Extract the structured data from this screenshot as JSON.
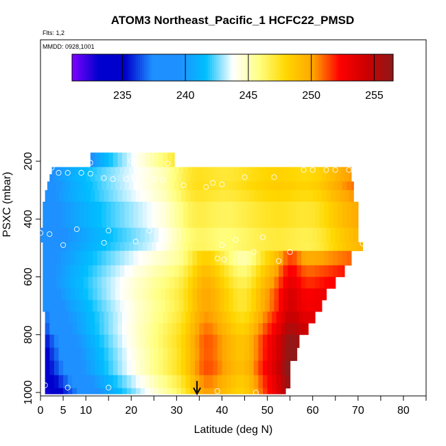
{
  "chart_data": {
    "type": "heatmap",
    "title": "ATOM3 Northeast_Pacific_1 HCFC22_PMSD",
    "annotations": {
      "flights": "Flts: 1,2",
      "dates": "MMDD: 0928,1001"
    },
    "xlabel": "Latitude (deg N)",
    "ylabel": "PSXC (mbar)",
    "xlim": [
      0,
      85
    ],
    "ylim": [
      1000,
      0
    ],
    "x_ticks": [
      0,
      5,
      10,
      20,
      30,
      40,
      50,
      60,
      70,
      80
    ],
    "y_ticks": [
      200,
      400,
      600,
      800,
      1000
    ],
    "colorbar": {
      "range": [
        231,
        256.5
      ],
      "ticks": [
        235,
        240,
        245,
        250,
        255
      ],
      "colors": [
        "#7f00ff",
        "#0000cd",
        "#0000cd",
        "#1e90ff",
        "#1e90ff",
        "#00bfff",
        "#ffffff",
        "#ffff80",
        "#ffd700",
        "#ffa500",
        "#ff0000",
        "#cc0000",
        "#8b1a1a"
      ]
    },
    "cell_rows": [
      {
        "p_top": 170,
        "p_bot": 220,
        "x_start": 11,
        "x_end": 29.5,
        "v_left": 239,
        "v_right": 246.5
      },
      {
        "p_top": 220,
        "p_bot": 245,
        "x_start": 2.5,
        "x_end": 68.5,
        "v_left": 239,
        "v_right": 250.5
      },
      {
        "p_top": 245,
        "p_bot": 270,
        "x_start": 2,
        "x_end": 68.5,
        "v_left": 239,
        "v_right": 250.5
      },
      {
        "p_top": 270,
        "p_bot": 300,
        "x_start": 1.5,
        "x_end": 69,
        "v_left": 238.5,
        "v_right": 251
      },
      {
        "p_top": 300,
        "p_bot": 340,
        "x_start": 1,
        "x_end": 69,
        "v_left": 238.5,
        "v_right": 250.5
      },
      {
        "p_top": 340,
        "p_bot": 380,
        "x_start": 0.5,
        "x_end": 70,
        "v_left": 238,
        "v_right": 250
      },
      {
        "p_top": 380,
        "p_bot": 430,
        "x_start": 0.5,
        "x_end": 70,
        "v_left": 238,
        "v_right": 250
      },
      {
        "p_top": 430,
        "p_bot": 480,
        "x_start": 0,
        "x_end": 70,
        "v_left": 237.5,
        "v_right": 249.5
      },
      {
        "p_top": 480,
        "p_bot": 510,
        "x_start": 0.5,
        "x_end": 71,
        "v_left": 238,
        "v_right": 249.5
      },
      {
        "p_top": 510,
        "p_bot": 560,
        "x_start": 0.5,
        "x_end": 68.5,
        "v_left": 238,
        "v_right": 251
      },
      {
        "p_top": 560,
        "p_bot": 600,
        "x_start": 0.5,
        "x_end": 67,
        "v_left": 238,
        "v_right": 252
      },
      {
        "p_top": 600,
        "p_bot": 640,
        "x_start": 0.5,
        "x_end": 65,
        "v_left": 238,
        "v_right": 252.5
      },
      {
        "p_top": 640,
        "p_bot": 680,
        "x_start": 0.5,
        "x_end": 63,
        "v_left": 237.5,
        "v_right": 253
      },
      {
        "p_top": 680,
        "p_bot": 720,
        "x_start": 0.5,
        "x_end": 62,
        "v_left": 237,
        "v_right": 253
      },
      {
        "p_top": 720,
        "p_bot": 760,
        "x_start": 1,
        "x_end": 60.5,
        "v_left": 236.5,
        "v_right": 253.5
      },
      {
        "p_top": 760,
        "p_bot": 800,
        "x_start": 1,
        "x_end": 59,
        "v_left": 236,
        "v_right": 254
      },
      {
        "p_top": 800,
        "p_bot": 845,
        "x_start": 1,
        "x_end": 57,
        "v_left": 235,
        "v_right": 254.5
      },
      {
        "p_top": 845,
        "p_bot": 890,
        "x_start": 1,
        "x_end": 56.5,
        "v_left": 234.5,
        "v_right": 254.5
      },
      {
        "p_top": 890,
        "p_bot": 940,
        "x_start": 1,
        "x_end": 55,
        "v_left": 234,
        "v_right": 254.5
      },
      {
        "p_top": 940,
        "p_bot": 985,
        "x_start": 1,
        "x_end": 55,
        "v_left": 233,
        "v_right": 254
      },
      {
        "p_top": 985,
        "p_bot": 1005,
        "x_start": 1,
        "x_end": 54,
        "v_left": 232,
        "v_right": 253.5
      }
    ],
    "points": [
      {
        "lat": 11,
        "p": 205
      },
      {
        "lat": 20,
        "p": 198
      },
      {
        "lat": 28,
        "p": 208
      },
      {
        "lat": 2.5,
        "p": 222
      },
      {
        "lat": 4,
        "p": 240
      },
      {
        "lat": 6,
        "p": 240
      },
      {
        "lat": 9,
        "p": 240
      },
      {
        "lat": 11,
        "p": 243
      },
      {
        "lat": 14,
        "p": 258
      },
      {
        "lat": 16,
        "p": 262
      },
      {
        "lat": 19,
        "p": 262
      },
      {
        "lat": 22,
        "p": 262
      },
      {
        "lat": 25,
        "p": 262
      },
      {
        "lat": 27,
        "p": 265
      },
      {
        "lat": 31.5,
        "p": 283
      },
      {
        "lat": 36.5,
        "p": 289
      },
      {
        "lat": 38,
        "p": 275
      },
      {
        "lat": 40,
        "p": 280
      },
      {
        "lat": 45,
        "p": 255
      },
      {
        "lat": 51.5,
        "p": 255
      },
      {
        "lat": 58,
        "p": 230
      },
      {
        "lat": 60,
        "p": 230
      },
      {
        "lat": 63,
        "p": 230
      },
      {
        "lat": 65,
        "p": 230
      },
      {
        "lat": 68,
        "p": 230
      },
      {
        "lat": 8,
        "p": 435
      },
      {
        "lat": 2,
        "p": 452
      },
      {
        "lat": 0,
        "p": 448
      },
      {
        "lat": 15,
        "p": 440
      },
      {
        "lat": 24,
        "p": 440
      },
      {
        "lat": 14,
        "p": 482
      },
      {
        "lat": 21,
        "p": 478
      },
      {
        "lat": 5,
        "p": 490
      },
      {
        "lat": 43,
        "p": 472
      },
      {
        "lat": 49,
        "p": 463
      },
      {
        "lat": 40,
        "p": 490
      },
      {
        "lat": 71,
        "p": 485
      },
      {
        "lat": 39,
        "p": 536
      },
      {
        "lat": 40.5,
        "p": 540
      },
      {
        "lat": 47,
        "p": 514
      },
      {
        "lat": 52.5,
        "p": 545
      },
      {
        "lat": 55,
        "p": 514
      },
      {
        "lat": 1,
        "p": 975
      },
      {
        "lat": 6,
        "p": 983
      },
      {
        "lat": 15,
        "p": 983
      },
      {
        "lat": 39,
        "p": 995
      },
      {
        "lat": 47.5,
        "p": 1000
      }
    ],
    "marker": {
      "lat": 34.5,
      "p_from": 960,
      "p_to": 1005
    }
  }
}
